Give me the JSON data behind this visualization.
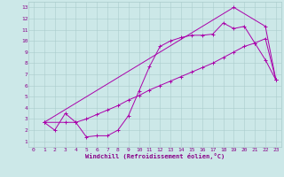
{
  "xlabel": "Windchill (Refroidissement éolien,°C)",
  "background_color": "#cce8e8",
  "grid_color": "#aacccc",
  "line_color": "#aa00aa",
  "xticks": [
    0,
    1,
    2,
    3,
    4,
    5,
    6,
    7,
    8,
    9,
    10,
    11,
    12,
    13,
    14,
    15,
    16,
    17,
    18,
    19,
    20,
    21,
    22,
    23
  ],
  "yticks": [
    1,
    2,
    3,
    4,
    5,
    6,
    7,
    8,
    9,
    10,
    11,
    12,
    13
  ],
  "xlim": [
    -0.5,
    23.5
  ],
  "ylim": [
    0.5,
    13.5
  ],
  "line1_x": [
    1,
    2,
    3,
    4,
    5,
    6,
    7,
    8,
    9,
    10,
    11,
    12,
    13,
    14,
    15,
    16,
    17,
    18,
    19,
    20,
    21,
    22,
    23
  ],
  "line1_y": [
    2.7,
    2.0,
    3.5,
    2.7,
    1.4,
    1.5,
    1.5,
    2.0,
    3.3,
    5.5,
    7.7,
    9.5,
    10.0,
    10.3,
    10.5,
    10.5,
    10.6,
    11.6,
    11.1,
    11.3,
    9.8,
    8.3,
    6.5
  ],
  "line2_x": [
    1,
    3,
    4,
    5,
    6,
    7,
    8,
    9,
    10,
    11,
    12,
    13,
    14,
    15,
    16,
    17,
    18,
    19,
    20,
    21,
    22,
    23
  ],
  "line2_y": [
    2.7,
    2.7,
    2.7,
    3.0,
    3.4,
    3.8,
    4.2,
    4.7,
    5.1,
    5.6,
    6.0,
    6.4,
    6.8,
    7.2,
    7.6,
    8.0,
    8.5,
    9.0,
    9.5,
    9.8,
    10.2,
    6.5
  ],
  "line3_x": [
    1,
    19,
    22,
    23
  ],
  "line3_y": [
    2.7,
    13.0,
    11.3,
    6.5
  ]
}
